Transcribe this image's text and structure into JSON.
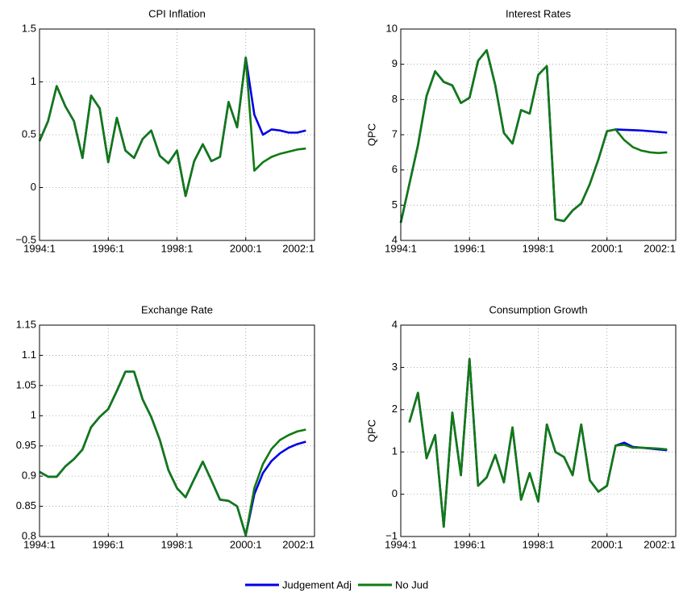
{
  "chart_data": [
    {
      "type": "line",
      "title": "CPI Inflation",
      "x": [
        1994,
        1994.25,
        1994.5,
        1994.75,
        1995,
        1995.25,
        1995.5,
        1995.75,
        1996,
        1996.25,
        1996.5,
        1996.75,
        1997,
        1997.25,
        1997.5,
        1997.75,
        1998,
        1998.25,
        1998.5,
        1998.75,
        1999,
        1999.25,
        1999.5,
        1999.75,
        2000,
        2000.25,
        2000.5,
        2000.75,
        2001,
        2001.25,
        2001.5,
        2001.75
      ],
      "series": [
        {
          "name": "Judgement Adj",
          "color": "#0000e6",
          "values": [
            0.44,
            0.63,
            0.96,
            0.77,
            0.63,
            0.28,
            0.87,
            0.75,
            0.24,
            0.66,
            0.35,
            0.28,
            0.46,
            0.54,
            0.3,
            0.23,
            0.35,
            -0.08,
            0.25,
            0.41,
            0.25,
            0.29,
            0.81,
            0.57,
            1.23,
            0.69,
            0.5,
            0.55,
            0.54,
            0.52,
            0.52,
            0.54
          ]
        },
        {
          "name": "No Jud",
          "color": "#117a11",
          "values": [
            0.44,
            0.63,
            0.96,
            0.77,
            0.63,
            0.28,
            0.87,
            0.75,
            0.24,
            0.66,
            0.35,
            0.28,
            0.46,
            0.54,
            0.3,
            0.23,
            0.35,
            -0.08,
            0.25,
            0.41,
            0.25,
            0.29,
            0.81,
            0.57,
            1.23,
            0.16,
            0.24,
            0.29,
            0.32,
            0.34,
            0.36,
            0.37
          ]
        }
      ],
      "xlim": [
        1994,
        2002
      ],
      "xticks": [
        {
          "value": 1994,
          "label": "1994:1"
        },
        {
          "value": 1996,
          "label": "1996:1"
        },
        {
          "value": 1998,
          "label": "1998:1"
        },
        {
          "value": 2000,
          "label": "2000:1"
        },
        {
          "value": 2002,
          "label": "2002:1"
        }
      ],
      "ylim": [
        -0.5,
        1.5
      ],
      "yticks": [
        {
          "value": -0.5,
          "label": "−0.5"
        },
        0,
        0.5,
        1,
        1.5
      ],
      "grid": true
    },
    {
      "type": "line",
      "title": "Interest Rates",
      "ylabel": "QPC",
      "x": [
        1994,
        1994.25,
        1994.5,
        1994.75,
        1995,
        1995.25,
        1995.5,
        1995.75,
        1996,
        1996.25,
        1996.5,
        1996.75,
        1997,
        1997.25,
        1997.5,
        1997.75,
        1998,
        1998.25,
        1998.5,
        1998.75,
        1999,
        1999.25,
        1999.5,
        1999.75,
        2000,
        2000.25,
        2000.5,
        2000.75,
        2001,
        2001.25,
        2001.5,
        2001.75
      ],
      "series": [
        {
          "color": "#0000e6",
          "values": [
            4.5,
            5.6,
            6.7,
            8.1,
            8.8,
            8.5,
            8.4,
            7.9,
            8.05,
            9.1,
            9.4,
            8.4,
            7.05,
            6.75,
            7.7,
            7.6,
            8.7,
            8.95,
            4.6,
            4.55,
            4.85,
            5.05,
            5.6,
            6.3,
            7.1,
            7.15,
            7.14,
            7.13,
            7.12,
            7.1,
            7.08,
            7.06
          ]
        },
        {
          "color": "#117a11",
          "values": [
            4.5,
            5.6,
            6.7,
            8.1,
            8.8,
            8.5,
            8.4,
            7.9,
            8.05,
            9.1,
            9.4,
            8.4,
            7.05,
            6.75,
            7.7,
            7.6,
            8.7,
            8.95,
            4.6,
            4.55,
            4.85,
            5.05,
            5.6,
            6.3,
            7.1,
            7.15,
            6.85,
            6.65,
            6.55,
            6.5,
            6.48,
            6.5
          ]
        }
      ],
      "xlim": [
        1994,
        2002
      ],
      "xticks": [
        {
          "value": 1994,
          "label": "1994:1"
        },
        {
          "value": 1996,
          "label": "1996:1"
        },
        {
          "value": 1998,
          "label": "1998:1"
        },
        {
          "value": 2000,
          "label": "2000:1"
        },
        {
          "value": 2002,
          "label": "2002:1"
        }
      ],
      "ylim": [
        4,
        10
      ],
      "yticks": [
        4,
        5,
        6,
        7,
        8,
        9,
        10
      ],
      "grid": true
    },
    {
      "type": "line",
      "title": "Exchange Rate",
      "x": [
        1994,
        1994.25,
        1994.5,
        1994.75,
        1995,
        1995.25,
        1995.5,
        1995.75,
        1996,
        1996.25,
        1996.5,
        1996.75,
        1997,
        1997.25,
        1997.5,
        1997.75,
        1998,
        1998.25,
        1998.5,
        1998.75,
        1999,
        1999.25,
        1999.5,
        1999.75,
        2000,
        2000.25,
        2000.5,
        2000.75,
        2001,
        2001.25,
        2001.5,
        2001.75
      ],
      "series": [
        {
          "color": "#0000e6",
          "values": [
            0.907,
            0.899,
            0.899,
            0.916,
            0.928,
            0.944,
            0.981,
            0.998,
            1.011,
            1.041,
            1.073,
            1.073,
            1.027,
            0.998,
            0.96,
            0.91,
            0.88,
            0.865,
            0.895,
            0.924,
            0.893,
            0.861,
            0.859,
            0.85,
            0.802,
            0.87,
            0.905,
            0.925,
            0.938,
            0.947,
            0.953,
            0.957
          ]
        },
        {
          "color": "#117a11",
          "values": [
            0.907,
            0.899,
            0.899,
            0.916,
            0.928,
            0.944,
            0.981,
            0.998,
            1.011,
            1.041,
            1.073,
            1.073,
            1.027,
            0.998,
            0.96,
            0.91,
            0.88,
            0.865,
            0.895,
            0.924,
            0.893,
            0.861,
            0.859,
            0.85,
            0.802,
            0.88,
            0.92,
            0.945,
            0.96,
            0.968,
            0.974,
            0.977
          ]
        }
      ],
      "xlim": [
        1994,
        2002
      ],
      "xticks": [
        {
          "value": 1994,
          "label": "1994:1"
        },
        {
          "value": 1996,
          "label": "1996:1"
        },
        {
          "value": 1998,
          "label": "1998:1"
        },
        {
          "value": 2000,
          "label": "2000:1"
        },
        {
          "value": 2002,
          "label": "2002:1"
        }
      ],
      "ylim": [
        0.8,
        1.15
      ],
      "yticks": [
        0.8,
        0.85,
        0.9,
        0.95,
        1,
        1.05,
        1.1,
        1.15
      ],
      "grid": true
    },
    {
      "type": "line",
      "title": "Consumption Growth",
      "ylabel": "QPC",
      "x": [
        1994.25,
        1994.5,
        1994.75,
        1995,
        1995.25,
        1995.5,
        1995.75,
        1996,
        1996.25,
        1996.5,
        1996.75,
        1997,
        1997.25,
        1997.5,
        1997.75,
        1998,
        1998.25,
        1998.5,
        1998.75,
        1999,
        1999.25,
        1999.5,
        1999.75,
        2000,
        2000.25,
        2000.5,
        2000.75,
        2001,
        2001.25,
        2001.5,
        2001.75
      ],
      "series": [
        {
          "color": "#0000e6",
          "values": [
            1.7,
            2.4,
            0.85,
            1.4,
            -0.77,
            1.93,
            0.45,
            3.2,
            0.2,
            0.4,
            0.93,
            0.28,
            1.58,
            -0.13,
            0.5,
            -0.17,
            1.65,
            1.0,
            0.88,
            0.45,
            1.65,
            0.33,
            0.06,
            0.2,
            1.15,
            1.22,
            1.12,
            1.1,
            1.08,
            1.06,
            1.04
          ]
        },
        {
          "color": "#117a11",
          "values": [
            1.7,
            2.4,
            0.85,
            1.4,
            -0.77,
            1.93,
            0.45,
            3.2,
            0.2,
            0.4,
            0.93,
            0.28,
            1.58,
            -0.13,
            0.5,
            -0.17,
            1.65,
            1.0,
            0.88,
            0.45,
            1.65,
            0.33,
            0.06,
            0.2,
            1.15,
            1.17,
            1.1,
            1.1,
            1.09,
            1.08,
            1.06
          ]
        }
      ],
      "xlim": [
        1994,
        2002
      ],
      "xticks": [
        {
          "value": 1994,
          "label": "1994:1"
        },
        {
          "value": 1996,
          "label": "1996:1"
        },
        {
          "value": 1998,
          "label": "1998:1"
        },
        {
          "value": 2000,
          "label": "2000:1"
        },
        {
          "value": 2002,
          "label": "2002:1"
        }
      ],
      "ylim": [
        -1,
        4
      ],
      "yticks": [
        {
          "value": -1,
          "label": "−1"
        },
        0,
        1,
        2,
        3,
        4
      ],
      "grid": true
    }
  ]
}
